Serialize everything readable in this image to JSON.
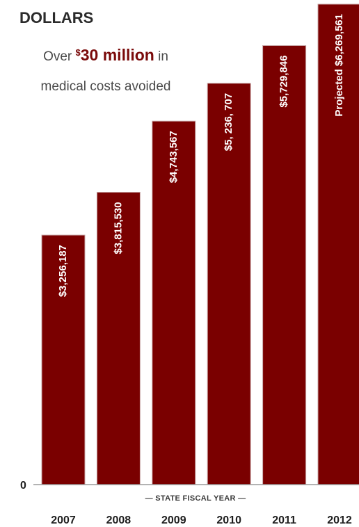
{
  "chart_data": {
    "type": "bar",
    "ylabel": "DOLLARS",
    "xlabel": "— STATE FISCAL YEAR —",
    "y_zero_label": "0",
    "annotation": {
      "prefix": "Over ",
      "currency": "$",
      "amount": "30 million",
      "suffix": " in",
      "line2": "medical costs avoided"
    },
    "categories": [
      "2007",
      "2008",
      "2009",
      "2010",
      "2011",
      "2012"
    ],
    "values": [
      3256187,
      3815530,
      4743567,
      5236707,
      5729846,
      6269561
    ],
    "data_labels": [
      "$3,256,187",
      "$3,815,530",
      "$4,743,567",
      "$5, 236, 707",
      "$5,729,846",
      "Projected $6,269,561"
    ],
    "ylim": [
      0,
      6269561
    ],
    "grid": false,
    "legend": "none",
    "bar_color": "#7a0000",
    "axis_color": "#9a9a9a"
  }
}
